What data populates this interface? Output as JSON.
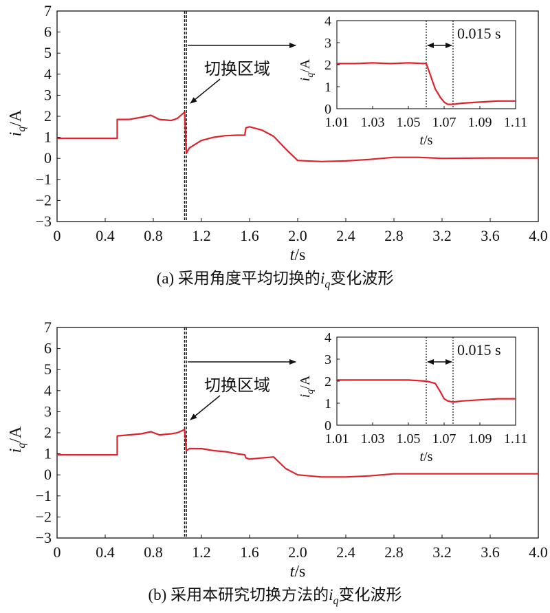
{
  "chart_data": [
    {
      "type": "line",
      "panel": "a",
      "caption_prefix": "(a) 采用角度平均切换的",
      "caption_suffix": "变化波形",
      "ylabel_main": "i",
      "ylabel_sub": "q",
      "ylabel_unit": "/A",
      "xlabel_main": "t",
      "xlabel_unit": "/s",
      "xlim": [
        0,
        4.0
      ],
      "ylim": [
        -3,
        7
      ],
      "xticks": [
        "0",
        "0.4",
        "0.8",
        "1.2",
        "1.6",
        "2.0",
        "2.4",
        "2.8",
        "3.2",
        "3.6",
        "4.0"
      ],
      "yticks": [
        "−3",
        "−2",
        "−1",
        "0",
        "1",
        "2",
        "3",
        "4",
        "5",
        "6",
        "7"
      ],
      "annotation": "切换区域",
      "switch_lines_x": [
        1.06,
        1.075
      ],
      "series": [
        {
          "color": "#e0202a",
          "x": [
            0,
            0.5,
            0.5,
            0.6,
            0.7,
            0.78,
            0.85,
            0.95,
            1.0,
            1.06,
            1.075,
            1.1,
            1.2,
            1.3,
            1.4,
            1.5,
            1.56,
            1.57,
            1.6,
            1.7,
            1.8,
            1.9,
            2.0,
            2.2,
            2.4,
            2.6,
            2.8,
            3.0,
            3.2,
            3.6,
            4.0
          ],
          "y": [
            0.95,
            0.95,
            1.85,
            1.85,
            1.95,
            2.05,
            1.85,
            1.8,
            1.9,
            2.2,
            0.25,
            0.5,
            0.85,
            1.0,
            1.08,
            1.1,
            1.1,
            1.45,
            1.5,
            1.35,
            1.05,
            0.45,
            -0.1,
            -0.15,
            -0.12,
            -0.05,
            0.05,
            0.05,
            0.0,
            0.02,
            0.02
          ]
        }
      ],
      "inset": {
        "xlim": [
          1.01,
          1.11
        ],
        "ylim": [
          0,
          4
        ],
        "xticks": [
          "1.01",
          "1.03",
          "1.05",
          "1.07",
          "1.09",
          "1.11"
        ],
        "yticks": [
          "0",
          "1",
          "2",
          "3",
          "4"
        ],
        "markers_x": [
          1.06,
          1.075
        ],
        "interval_label": "0.015 s",
        "ylabel_main": "i",
        "ylabel_sub": "q",
        "ylabel_unit": "/A",
        "xlabel_main": "t",
        "xlabel_unit": "/s",
        "series": [
          {
            "color": "#e0202a",
            "x": [
              1.01,
              1.02,
              1.03,
              1.04,
              1.05,
              1.06,
              1.062,
              1.065,
              1.068,
              1.07,
              1.072,
              1.075,
              1.08,
              1.09,
              1.1,
              1.11
            ],
            "y": [
              2.05,
              2.05,
              2.08,
              2.05,
              2.08,
              2.05,
              1.6,
              0.9,
              0.5,
              0.3,
              0.2,
              0.2,
              0.25,
              0.3,
              0.35,
              0.35
            ]
          }
        ]
      }
    },
    {
      "type": "line",
      "panel": "b",
      "caption_prefix": "(b) 采用本研究切换方法的",
      "caption_suffix": "变化波形",
      "ylabel_main": "i",
      "ylabel_sub": "q",
      "ylabel_unit": "/A",
      "xlabel_main": "t",
      "xlabel_unit": "/s",
      "xlim": [
        0,
        4.0
      ],
      "ylim": [
        -3,
        7
      ],
      "xticks": [
        "0",
        "0.4",
        "0.8",
        "1.2",
        "1.6",
        "2.0",
        "2.4",
        "2.8",
        "3.2",
        "3.6",
        "4.0"
      ],
      "yticks": [
        "−3",
        "−2",
        "−1",
        "0",
        "1",
        "2",
        "3",
        "4",
        "5",
        "6",
        "7"
      ],
      "annotation": "切换区域",
      "switch_lines_x": [
        1.06,
        1.075
      ],
      "series": [
        {
          "color": "#e0202a",
          "x": [
            0,
            0.5,
            0.5,
            0.6,
            0.7,
            0.78,
            0.85,
            0.95,
            1.0,
            1.06,
            1.075,
            1.1,
            1.2,
            1.3,
            1.4,
            1.5,
            1.56,
            1.57,
            1.6,
            1.7,
            1.8,
            1.9,
            2.0,
            2.2,
            2.4,
            2.6,
            2.8,
            3.0,
            3.2,
            3.6,
            4.0
          ],
          "y": [
            0.95,
            0.95,
            1.85,
            1.9,
            1.95,
            2.05,
            1.9,
            1.95,
            2.0,
            2.15,
            1.15,
            1.25,
            1.25,
            1.15,
            1.1,
            1.0,
            0.95,
            0.8,
            0.75,
            0.8,
            0.85,
            0.3,
            0.0,
            -0.1,
            -0.1,
            -0.05,
            0.05,
            0.05,
            0.05,
            0.05,
            0.05
          ]
        }
      ],
      "inset": {
        "xlim": [
          1.01,
          1.11
        ],
        "ylim": [
          0,
          4
        ],
        "xticks": [
          "1.01",
          "1.03",
          "1.05",
          "1.07",
          "1.09",
          "1.11"
        ],
        "yticks": [
          "0",
          "1",
          "2",
          "3",
          "4"
        ],
        "markers_x": [
          1.06,
          1.075
        ],
        "interval_label": "0.015 s",
        "ylabel_main": "i",
        "ylabel_sub": "q",
        "ylabel_unit": "/A",
        "xlabel_main": "t",
        "xlabel_unit": "/s",
        "series": [
          {
            "color": "#e0202a",
            "x": [
              1.01,
              1.02,
              1.03,
              1.04,
              1.05,
              1.06,
              1.065,
              1.068,
              1.07,
              1.072,
              1.075,
              1.08,
              1.09,
              1.1,
              1.11
            ],
            "y": [
              2.05,
              2.05,
              2.05,
              2.05,
              2.05,
              2.0,
              1.9,
              1.5,
              1.2,
              1.1,
              1.05,
              1.1,
              1.15,
              1.2,
              1.2
            ]
          }
        ]
      }
    }
  ]
}
